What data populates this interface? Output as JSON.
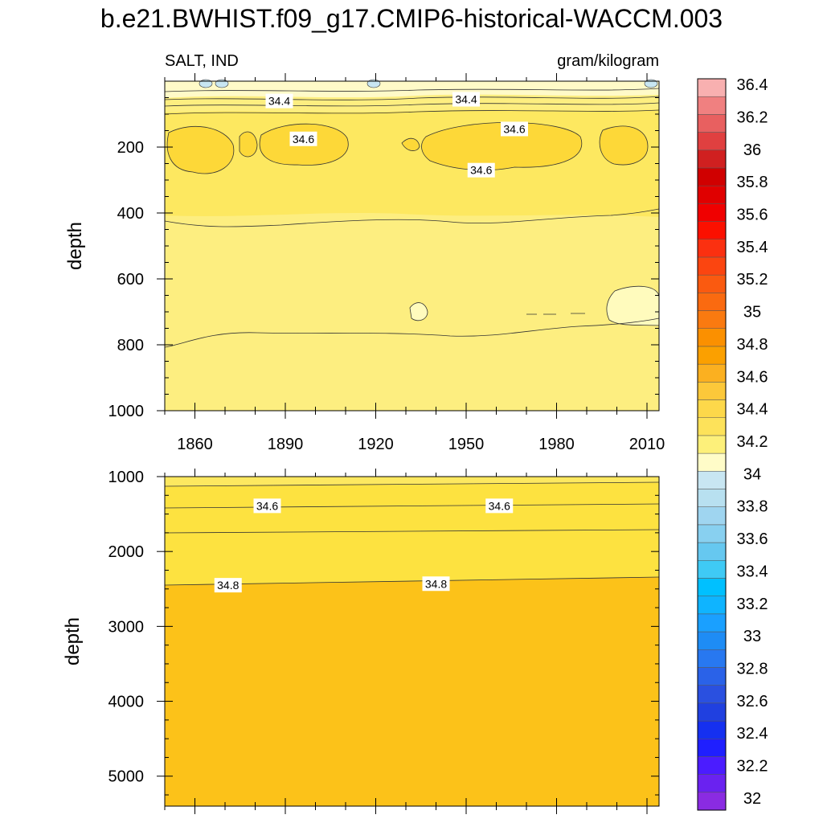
{
  "title": "b.e21.BWHIST.f09_g17.CMIP6-historical-WACCM.003",
  "chart_data": {
    "type": "heatmap",
    "variable": "SALT, IND",
    "units": "gram/kilogram",
    "colorbar": {
      "levels": [
        32,
        32.2,
        32.4,
        32.6,
        32.8,
        33,
        33.2,
        33.4,
        33.6,
        33.8,
        34,
        34.2,
        34.4,
        34.6,
        34.8,
        35,
        35.2,
        35.4,
        35.6,
        35.8,
        36,
        36.2,
        36.4
      ],
      "colors": [
        "#8a2be2",
        "#6a22f0",
        "#4b1cff",
        "#1f1fff",
        "#1530f0",
        "#2040e0",
        "#2a50e0",
        "#2a62e8",
        "#2878f0",
        "#1e8cf5",
        "#1aa0ff",
        "#0fb4ff",
        "#00c0ff",
        "#3fcaf5",
        "#66c8f0",
        "#88d0f0",
        "#9fd5f0",
        "#b8e0f0",
        "#c8e6f2",
        "#fffcc8",
        "#fdf07a",
        "#fde25a",
        "#fdd84a",
        "#fcc83a",
        "#fbb020",
        "#fba000",
        "#fb9000",
        "#fa7a10",
        "#fa6a10",
        "#fa5a10",
        "#fb4510",
        "#fb3010",
        "#fb1000",
        "#f00000",
        "#e00000",
        "#d00000",
        "#d02020",
        "#e04040",
        "#e86060",
        "#f08080",
        "#f8b0b0"
      ],
      "labels": [
        "32",
        "32.2",
        "32.4",
        "32.6",
        "32.8",
        "33",
        "33.2",
        "33.4",
        "33.6",
        "33.8",
        "34",
        "34.2",
        "34.4",
        "34.6",
        "34.8",
        "35",
        "35.2",
        "35.4",
        "35.6",
        "35.8",
        "36",
        "36.2",
        "36.4"
      ]
    },
    "panels": [
      {
        "name": "upper",
        "ylabel": "depth",
        "xlim": [
          1850,
          2014
        ],
        "ylim": [
          0,
          1000
        ],
        "y_reversed": true,
        "xticks": [
          1860,
          1890,
          1920,
          1950,
          1980,
          2010
        ],
        "yticks": [
          200,
          400,
          600,
          800,
          1000
        ],
        "contour_labels": [
          {
            "text": "34.4",
            "x": 1888,
            "depth": 60
          },
          {
            "text": "34.4",
            "x": 1950,
            "depth": 55
          },
          {
            "text": "34.6",
            "x": 1896,
            "depth": 175
          },
          {
            "text": "34.6",
            "x": 1966,
            "depth": 145
          },
          {
            "text": "34.6",
            "x": 1955,
            "depth": 270
          }
        ]
      },
      {
        "name": "lower",
        "ylabel": "depth",
        "xlim": [
          1850,
          2014
        ],
        "ylim": [
          1000,
          5400
        ],
        "y_reversed": true,
        "yticks": [
          1000,
          2000,
          3000,
          4000,
          5000
        ],
        "contour_labels": [
          {
            "text": "34.6",
            "x": 1884,
            "depth": 1390
          },
          {
            "text": "34.6",
            "x": 1961,
            "depth": 1390
          },
          {
            "text": "34.8",
            "x": 1871,
            "depth": 2450
          },
          {
            "text": "34.8",
            "x": 1940,
            "depth": 2430
          }
        ]
      }
    ]
  }
}
